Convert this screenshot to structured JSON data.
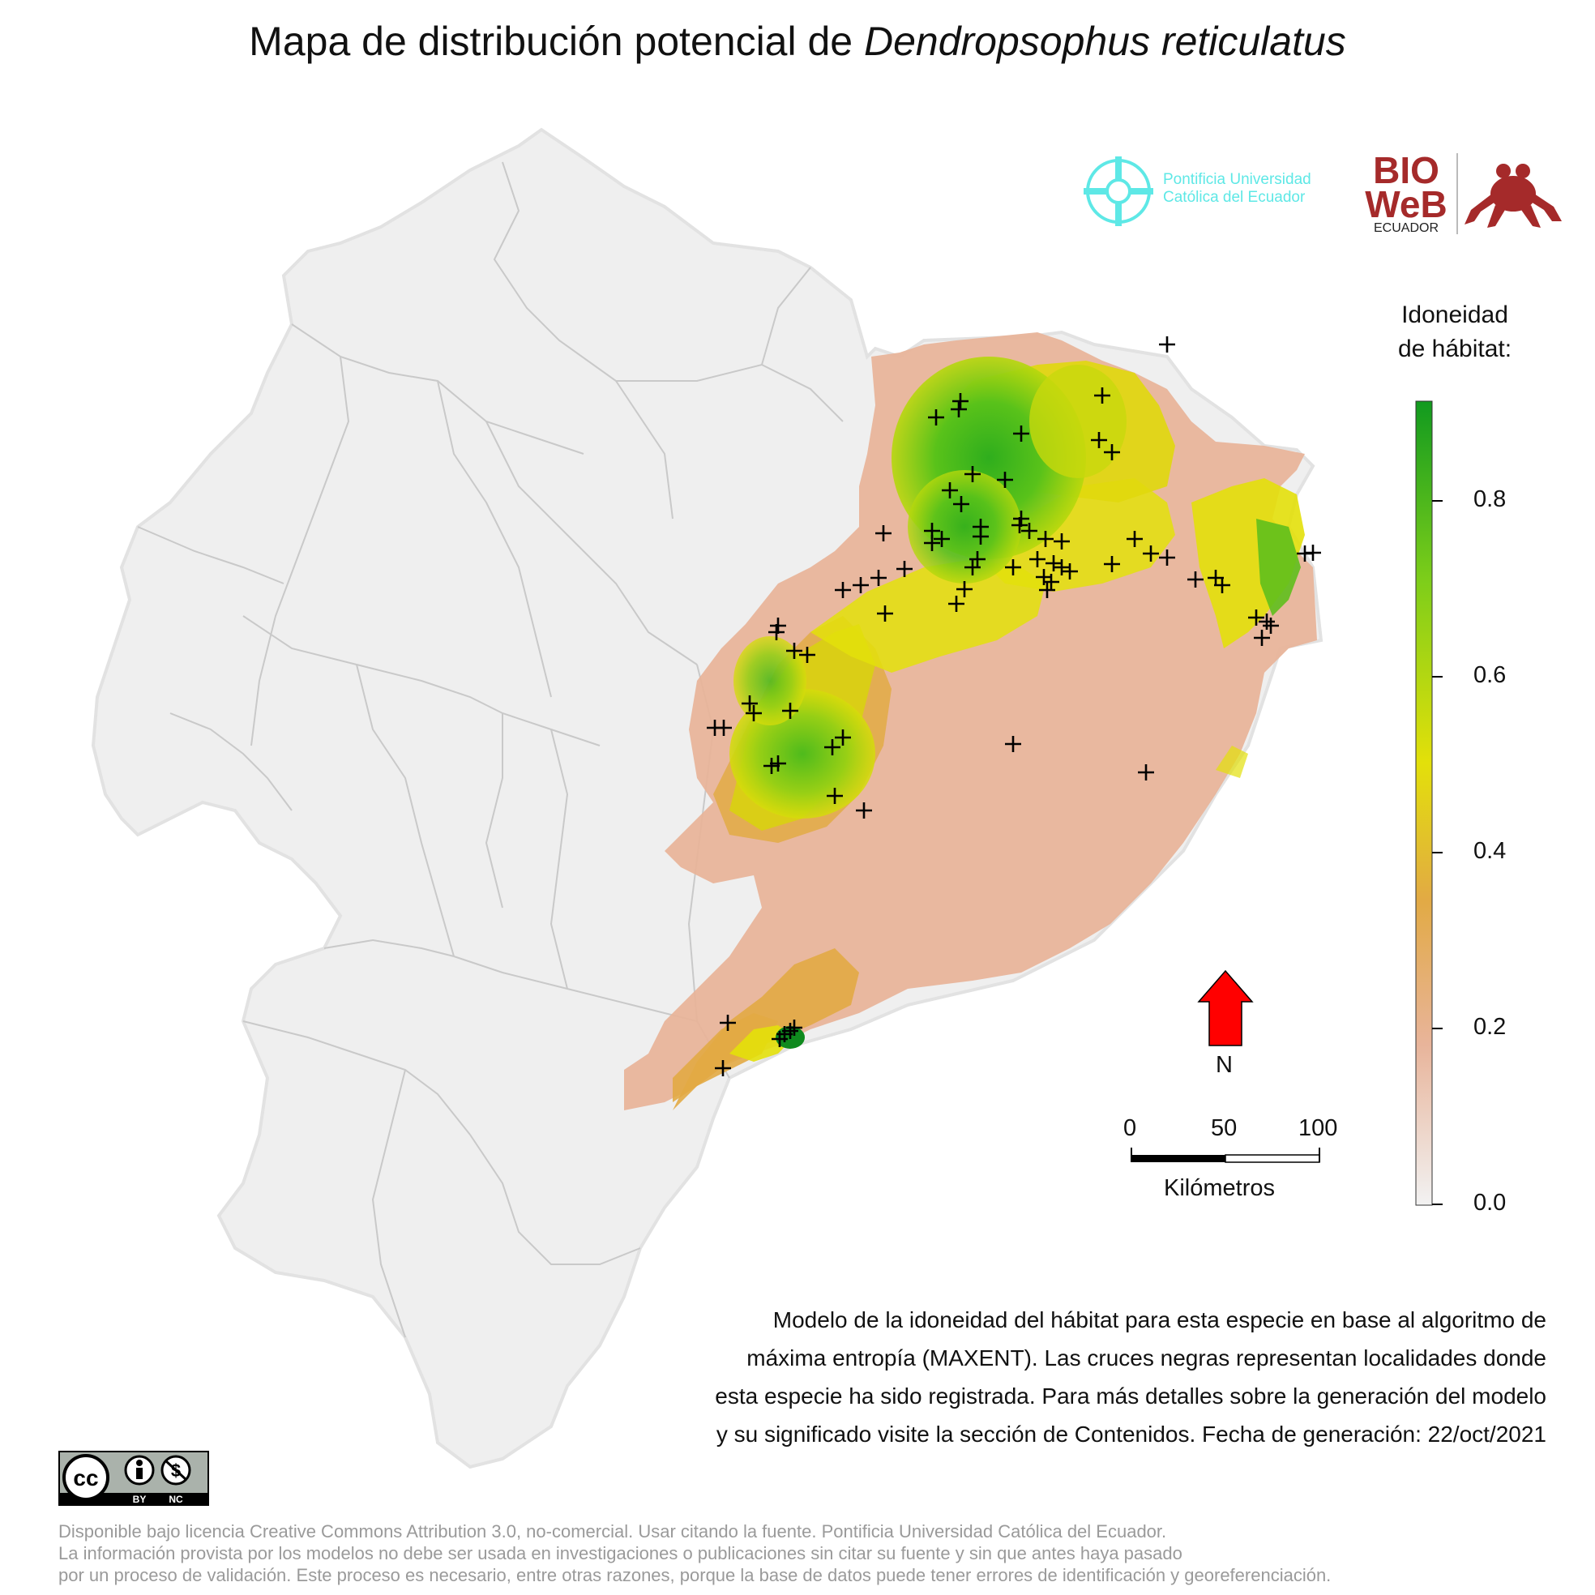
{
  "title": {
    "prefix": "Mapa de distribución potencial de ",
    "species": "Dendropsophus reticulatus"
  },
  "logos": {
    "puce_line1": "Pontificia Universidad",
    "puce_line2": "Católica del Ecuador",
    "bioweb_line1": "BIO",
    "bioweb_line2": "WeB",
    "bioweb_sub": "ECUADOR"
  },
  "legend": {
    "title_line1": "Idoneidad",
    "title_line2": "de hábitat:",
    "ticks": [
      "0.8",
      "0.6",
      "0.4",
      "0.2",
      "0.0"
    ],
    "colors": [
      "#f2f2f2",
      "#e8b49a",
      "#e2aa44",
      "#e3e00a",
      "#7ccd1a",
      "#119a1f"
    ]
  },
  "north": {
    "label": "N",
    "color": "#ff0000"
  },
  "scale": {
    "labels": [
      "0",
      "50",
      "100"
    ],
    "unit": "Kilómetros"
  },
  "caption": {
    "line1": "Modelo de la idoneidad del hábitat para esta especie en base al algoritmo de",
    "line2": "máxima entropía (MAXENT). Las cruces negras representan localidades donde",
    "line3": "esta especie ha sido registrada. Para más detalles sobre la generación del modelo",
    "line4": "y su significado visite la sección de Contenidos. Fecha de generación: 22/oct/2021"
  },
  "license": {
    "cc": "cc",
    "by": "BY",
    "nc": "NC"
  },
  "footer": {
    "line1": "Disponible bajo licencia Creative Commons Attribution 3.0, no-comercial. Usar citando la fuente. Pontificia Universidad Católica del Ecuador.",
    "line2": "La información provista por los modelos no debe ser usada en investigaciones o publicaciones sin citar su fuente y sin que antes haya pasado",
    "line3": "por un proceso de validación. Este proceso es necesario, entre otras razones, porque la base de datos puede tener errores de identificación y georeferenciación."
  }
}
